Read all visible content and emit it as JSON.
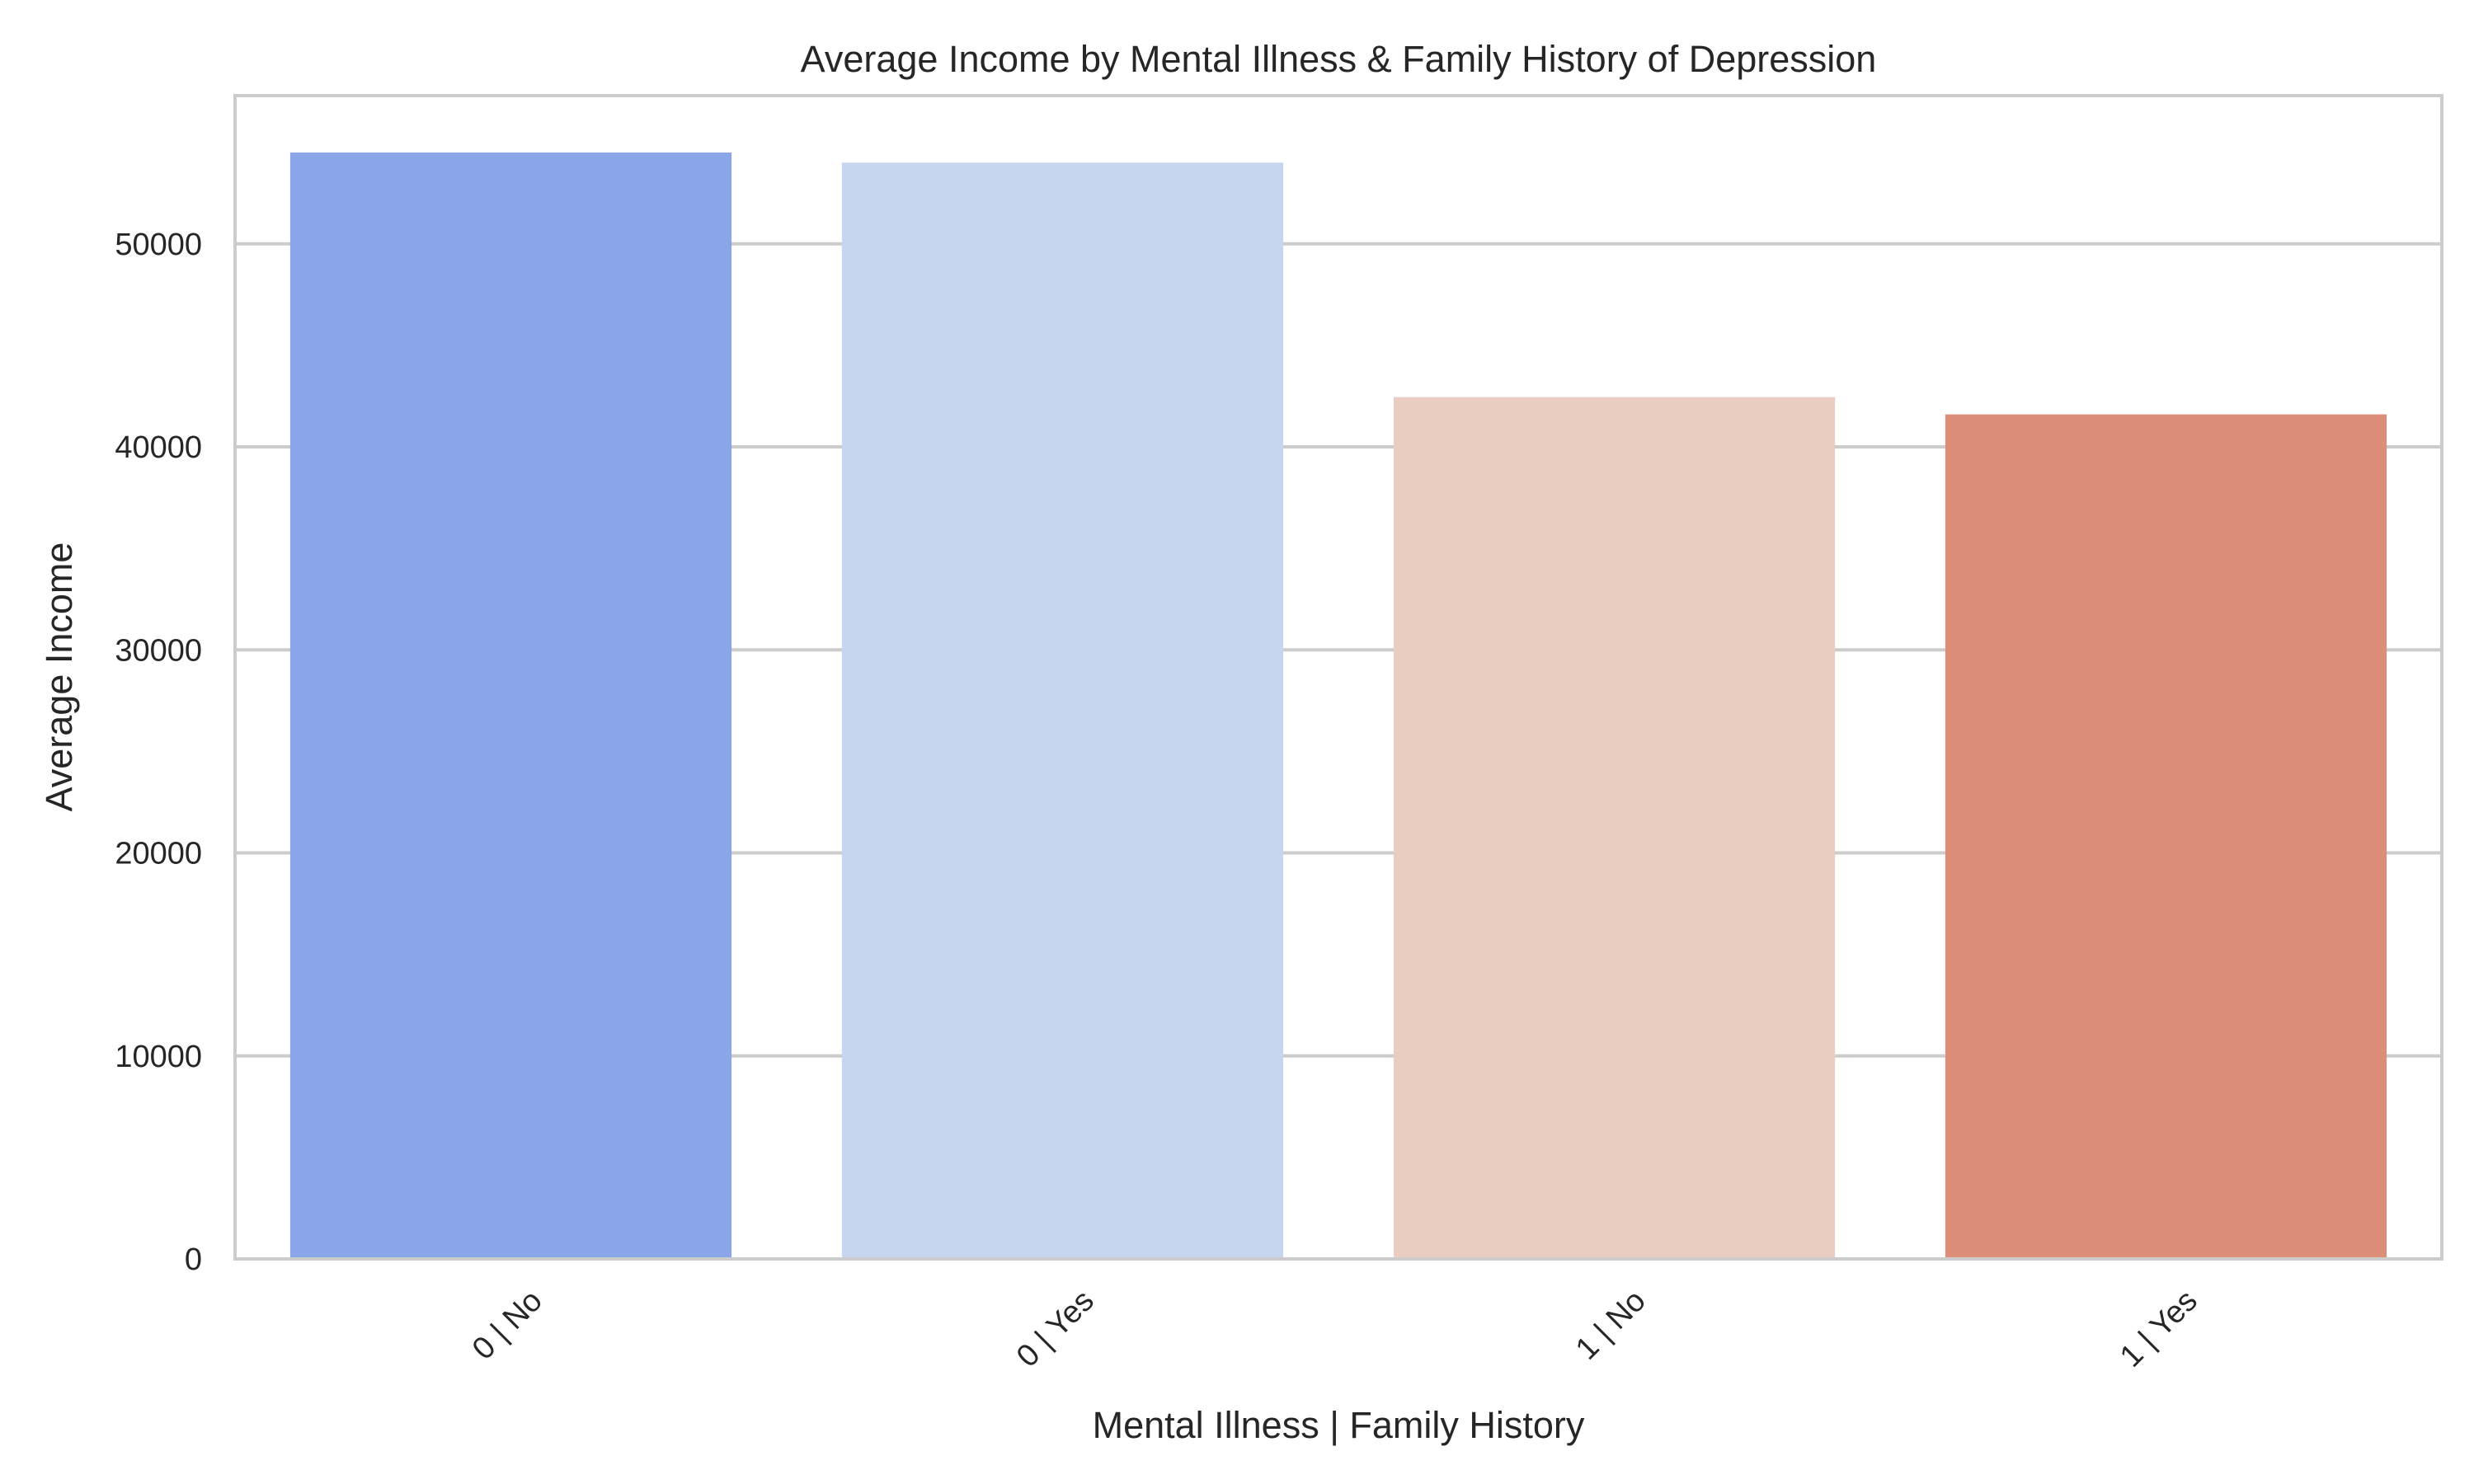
{
  "chart_data": {
    "type": "bar",
    "title": "Average Income by Mental Illness & Family History of Depression",
    "xlabel": "Mental Illness | Family History",
    "ylabel": "Average Income",
    "categories": [
      "0 | No",
      "0 | Yes",
      "1 | No",
      "1 | Yes"
    ],
    "values": [
      54500,
      54000,
      42450,
      41600
    ],
    "colors": [
      "#8aa5e8",
      "#c7d5ef",
      "#e9cdc0",
      "#dc8e78"
    ],
    "ylim": [
      0,
      57300
    ],
    "yticks": [
      0,
      10000,
      20000,
      30000,
      40000,
      50000
    ],
    "ytick_labels": [
      "0",
      "10000",
      "20000",
      "30000",
      "40000",
      "50000"
    ],
    "grid": true,
    "legend": "none"
  }
}
